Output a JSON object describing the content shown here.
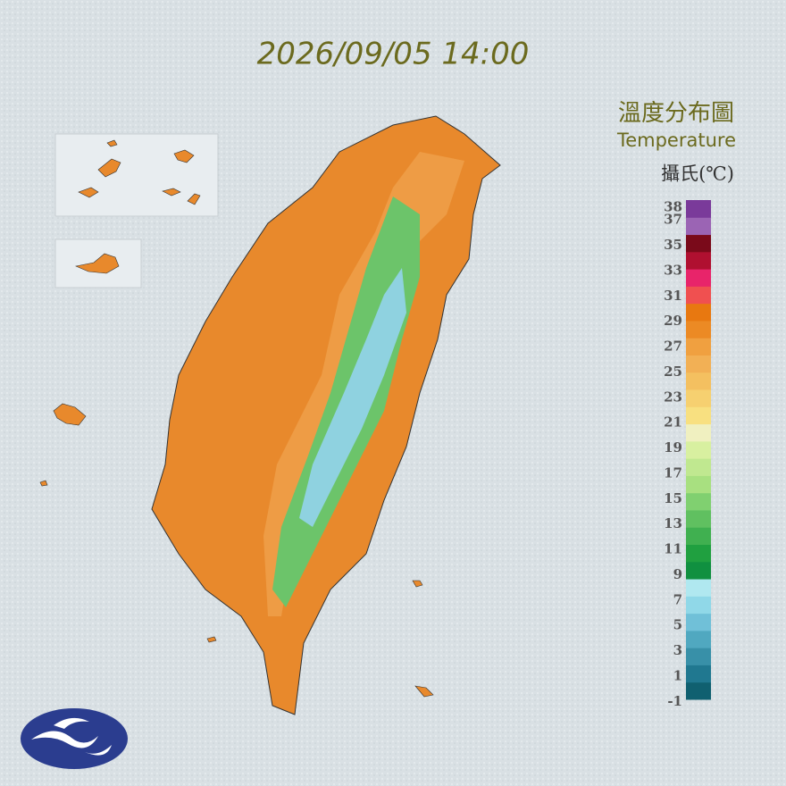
{
  "title": "2026/09/05 14:00",
  "legend": {
    "heading": "溫度分布圖",
    "subheading": "Temperature",
    "unit": "攝氏(℃)",
    "range": [
      -0.8,
      38.6
    ],
    "ticks": [
      38,
      37,
      35,
      33,
      31,
      29,
      27,
      25,
      23,
      21,
      19,
      17,
      15,
      13,
      11,
      9,
      7,
      5,
      3,
      1,
      -1
    ],
    "colors": [
      "#106070",
      "#207890",
      "#3890a8",
      "#50a8c0",
      "#70c0d8",
      "#90d8e8",
      "#b0e8f0",
      "#109040",
      "#20a040",
      "#40b050",
      "#60c060",
      "#80d070",
      "#a8e080",
      "#c0e890",
      "#d8f0a0",
      "#f0f0c0",
      "#f8e080",
      "#f6d070",
      "#f4c060",
      "#f2b055",
      "#f0a040",
      "#ec8a24",
      "#e87810",
      "#f05050",
      "#e8246a",
      "#b01030",
      "#7a0a1a",
      "#9b64b4",
      "#7a3a9a"
    ]
  }
}
